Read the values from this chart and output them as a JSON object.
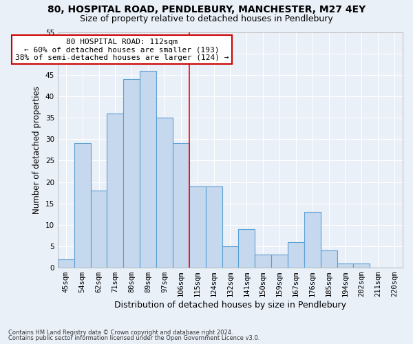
{
  "title1": "80, HOSPITAL ROAD, PENDLEBURY, MANCHESTER, M27 4EY",
  "title2": "Size of property relative to detached houses in Pendlebury",
  "xlabel": "Distribution of detached houses by size in Pendlebury",
  "ylabel": "Number of detached properties",
  "footer1": "Contains HM Land Registry data © Crown copyright and database right 2024.",
  "footer2": "Contains public sector information licensed under the Open Government Licence v3.0.",
  "bar_labels": [
    "45sqm",
    "54sqm",
    "62sqm",
    "71sqm",
    "80sqm",
    "89sqm",
    "97sqm",
    "106sqm",
    "115sqm",
    "124sqm",
    "132sqm",
    "141sqm",
    "150sqm",
    "159sqm",
    "167sqm",
    "176sqm",
    "185sqm",
    "194sqm",
    "202sqm",
    "211sqm",
    "220sqm"
  ],
  "bar_values": [
    2,
    29,
    18,
    36,
    44,
    46,
    35,
    29,
    19,
    19,
    5,
    9,
    3,
    3,
    6,
    13,
    4,
    1,
    1,
    0,
    0
  ],
  "bar_color": "#c5d8ed",
  "bar_edge_color": "#5a9fd4",
  "background_color": "#eaf0f8",
  "grid_color": "#ffffff",
  "red_line_x": 7.5,
  "annotation_text": "80 HOSPITAL ROAD: 112sqm\n← 60% of detached houses are smaller (193)\n38% of semi-detached houses are larger (124) →",
  "annotation_box_color": "#ffffff",
  "annotation_box_edge": "#cc0000",
  "ylim": [
    0,
    55
  ],
  "yticks": [
    0,
    5,
    10,
    15,
    20,
    25,
    30,
    35,
    40,
    45,
    50,
    55
  ],
  "title1_fontsize": 10,
  "title2_fontsize": 9,
  "xlabel_fontsize": 9,
  "ylabel_fontsize": 8.5,
  "tick_fontsize": 7.5,
  "annotation_fontsize": 8
}
